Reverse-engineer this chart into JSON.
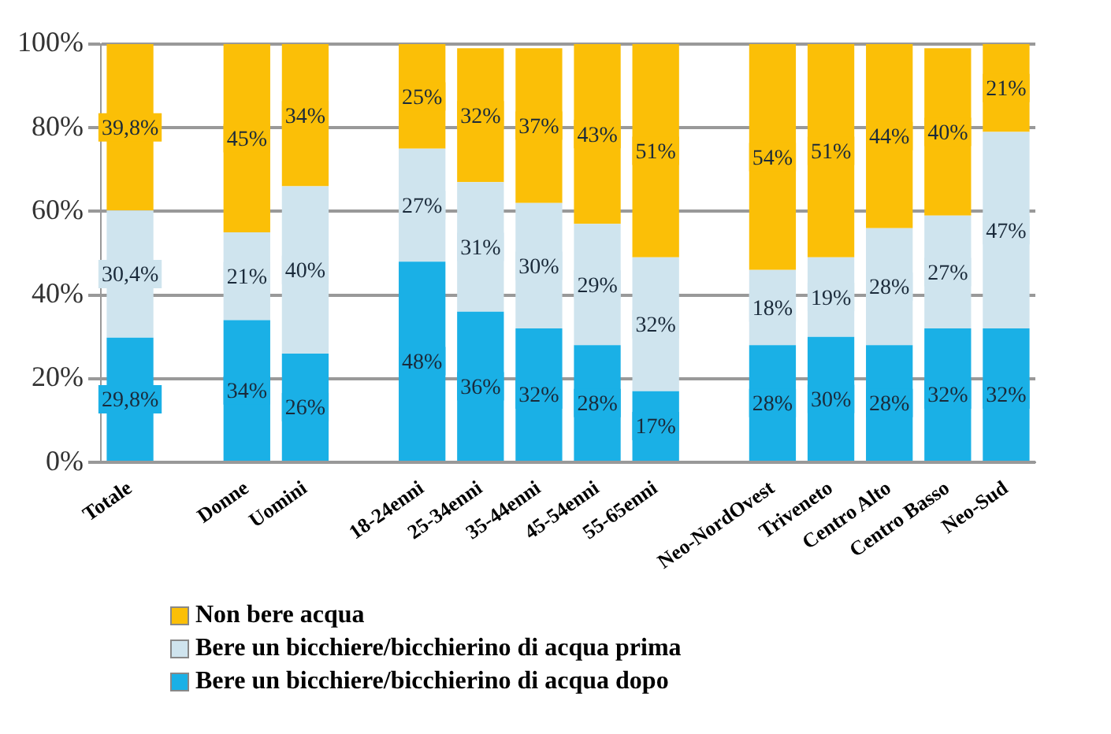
{
  "chart_data": {
    "type": "bar",
    "stacked": true,
    "categories": [
      "Totale",
      null,
      "Donne",
      "Uomini",
      null,
      "18-24enni",
      "25-34enni",
      "35-44enni",
      "45-54enni",
      "55-65enni",
      null,
      "Neo-NordOvest",
      "Triveneto",
      "Centro Alto",
      "Centro Basso",
      "Neo-Sud"
    ],
    "series": [
      {
        "name": "Bere un bicchiere/bicchierino di acqua dopo",
        "color": "#1ab0e6",
        "values": [
          29.8,
          null,
          34,
          26,
          null,
          48,
          36,
          32,
          28,
          17,
          null,
          28,
          30,
          28,
          32,
          32
        ],
        "value_labels": [
          "29,8%",
          null,
          "34%",
          "26%",
          null,
          "48%",
          "36%",
          "32%",
          "28%",
          "17%",
          null,
          "28%",
          "30%",
          "28%",
          "32%",
          "32%"
        ]
      },
      {
        "name": "Bere un bicchiere/bicchierino di acqua prima",
        "color": "#cfe4ee",
        "values": [
          30.4,
          null,
          21,
          40,
          null,
          27,
          31,
          30,
          29,
          32,
          null,
          18,
          19,
          28,
          27,
          47
        ],
        "value_labels": [
          "30,4%",
          null,
          "21%",
          "40%",
          null,
          "27%",
          "31%",
          "30%",
          "29%",
          "32%",
          null,
          "18%",
          "19%",
          "28%",
          "27%",
          "47%"
        ]
      },
      {
        "name": "Non bere acqua",
        "color": "#fbbf07",
        "values": [
          39.8,
          null,
          45,
          34,
          null,
          25,
          32,
          37,
          43,
          51,
          null,
          54,
          51,
          44,
          40,
          21
        ],
        "value_labels": [
          "39,8%",
          null,
          "45%",
          "34%",
          null,
          "25%",
          "32%",
          "37%",
          "43%",
          "51%",
          null,
          "54%",
          "51%",
          "44%",
          "40%",
          "21%"
        ]
      }
    ],
    "ylim": [
      0,
      100
    ],
    "yticks": [
      {
        "value": 0,
        "label": "0%"
      },
      {
        "value": 20,
        "label": "20%"
      },
      {
        "value": 40,
        "label": "40%"
      },
      {
        "value": 60,
        "label": "60%"
      },
      {
        "value": 80,
        "label": "80%"
      },
      {
        "value": 100,
        "label": "100%"
      }
    ],
    "grid": "y",
    "legend": "bottom left"
  }
}
